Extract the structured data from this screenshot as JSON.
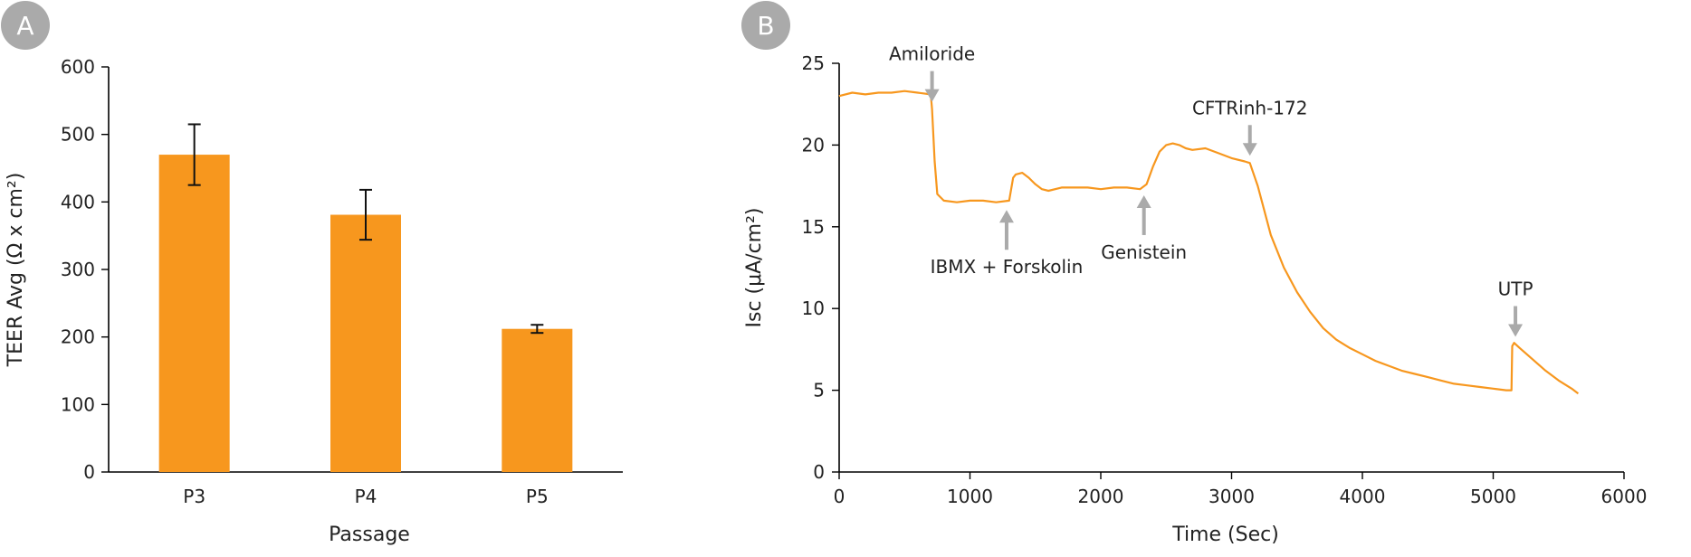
{
  "colors": {
    "bar": "#F7971E",
    "line": "#F7971E",
    "badge": "#AAAAAA",
    "arrow": "#AAAAAA",
    "axis": "#000000"
  },
  "panels": {
    "a_label": "A",
    "b_label": "B"
  },
  "chart_data": [
    {
      "type": "bar",
      "title": "",
      "categories": [
        "P3",
        "P4",
        "P5"
      ],
      "values": [
        470,
        381,
        212
      ],
      "error": [
        45,
        37,
        6
      ],
      "xlabel": "Passage",
      "ylabel": "TEER Avg (Ω x cm²)",
      "ylim": [
        0,
        600
      ],
      "yticks": [
        0,
        100,
        200,
        300,
        400,
        500,
        600
      ],
      "grid": false,
      "legend": "none"
    },
    {
      "type": "line",
      "title": "",
      "xlabel": "Time (Sec)",
      "ylabel": "Isc (μA/cm²)",
      "xlim": [
        0,
        6000
      ],
      "ylim": [
        0,
        25
      ],
      "xticks": [
        0,
        1000,
        2000,
        3000,
        4000,
        5000,
        6000
      ],
      "yticks": [
        0,
        5,
        10,
        15,
        20,
        25
      ],
      "grid": false,
      "legend": "none",
      "series": [
        {
          "x": [
            0,
            100,
            200,
            300,
            400,
            500,
            600,
            700,
            710,
            730,
            750,
            800,
            900,
            1000,
            1100,
            1200,
            1300,
            1330,
            1350,
            1400,
            1450,
            1500,
            1550,
            1600,
            1700,
            1800,
            1900,
            2000,
            2100,
            2200,
            2300,
            2350,
            2400,
            2450,
            2500,
            2550,
            2600,
            2650,
            2700,
            2800,
            2900,
            3000,
            3100,
            3140,
            3200,
            3300,
            3400,
            3500,
            3600,
            3700,
            3800,
            3900,
            4000,
            4100,
            4200,
            4300,
            4400,
            4500,
            4600,
            4700,
            4800,
            4900,
            5000,
            5100,
            5140,
            5145,
            5160,
            5200,
            5300,
            5400,
            5500,
            5600,
            5650
          ],
          "y": [
            23.0,
            23.2,
            23.1,
            23.2,
            23.2,
            23.3,
            23.2,
            23.1,
            22.2,
            19.0,
            17.0,
            16.6,
            16.5,
            16.6,
            16.6,
            16.5,
            16.6,
            18.0,
            18.2,
            18.3,
            18.0,
            17.6,
            17.3,
            17.2,
            17.4,
            17.4,
            17.4,
            17.3,
            17.4,
            17.4,
            17.3,
            17.6,
            18.7,
            19.6,
            20.0,
            20.1,
            20.0,
            19.8,
            19.7,
            19.8,
            19.5,
            19.2,
            19.0,
            18.9,
            17.5,
            14.5,
            12.5,
            11.0,
            9.8,
            8.8,
            8.1,
            7.6,
            7.2,
            6.8,
            6.5,
            6.2,
            6.0,
            5.8,
            5.6,
            5.4,
            5.3,
            5.2,
            5.1,
            5.0,
            5.0,
            7.7,
            7.9,
            7.6,
            6.9,
            6.2,
            5.6,
            5.1,
            4.8
          ]
        }
      ],
      "annotations": [
        {
          "text": "Amiloride",
          "x": 710,
          "direction": "down"
        },
        {
          "text": "IBMX + Forskolin",
          "x": 1280,
          "direction": "up"
        },
        {
          "text": "Genistein",
          "x": 2330,
          "direction": "up"
        },
        {
          "text": "CFTRinh-172",
          "x": 3140,
          "direction": "down"
        },
        {
          "text": "UTP",
          "x": 5170,
          "direction": "down"
        }
      ]
    }
  ]
}
